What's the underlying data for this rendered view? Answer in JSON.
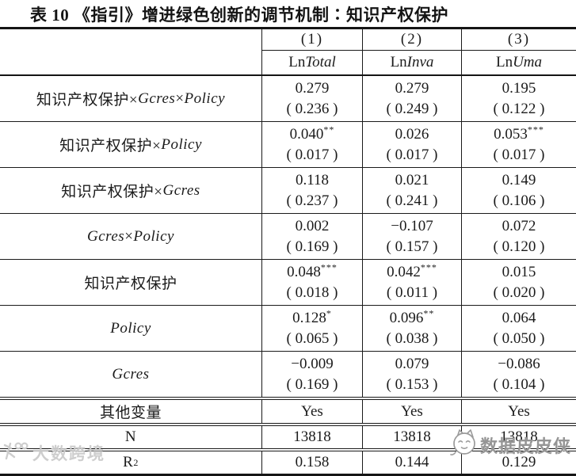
{
  "title": "表 10 《指引》增进绿色创新的调节机制∶知识产权保护",
  "watermarks": {
    "left_text": "大数跨境",
    "right_text": "数据皮皮侠",
    "left_color": "#cccccc",
    "right_color": "#959595"
  },
  "table": {
    "column_numbers": [
      "(1)",
      "(2)",
      "(3)"
    ],
    "column_vars": [
      {
        "segments": [
          {
            "t": "Ln"
          },
          {
            "t": "Total",
            "i": true
          }
        ]
      },
      {
        "segments": [
          {
            "t": "Ln"
          },
          {
            "t": "Inva",
            "i": true
          }
        ]
      },
      {
        "segments": [
          {
            "t": "Ln"
          },
          {
            "t": "Uma",
            "i": true
          }
        ]
      }
    ],
    "coef_rows": [
      {
        "label": [
          {
            "t": "知识产权保护×"
          },
          {
            "t": "Gcres",
            "i": true
          },
          {
            "t": "×"
          },
          {
            "t": "Policy",
            "i": true
          }
        ],
        "cells": [
          {
            "coef": "0.279",
            "stars": "",
            "se": "( 0.236 )"
          },
          {
            "coef": "0.279",
            "stars": "",
            "se": "( 0.249 )"
          },
          {
            "coef": "0.195",
            "stars": "",
            "se": "( 0.122 )"
          }
        ]
      },
      {
        "label": [
          {
            "t": "知识产权保护×"
          },
          {
            "t": "Policy",
            "i": true
          }
        ],
        "cells": [
          {
            "coef": "0.040",
            "stars": "**",
            "se": "( 0.017 )"
          },
          {
            "coef": "0.026",
            "stars": "",
            "se": "( 0.017 )"
          },
          {
            "coef": "0.053",
            "stars": "***",
            "se": "( 0.017 )"
          }
        ]
      },
      {
        "label": [
          {
            "t": "知识产权保护×"
          },
          {
            "t": "Gcres",
            "i": true
          }
        ],
        "cells": [
          {
            "coef": "0.118",
            "stars": "",
            "se": "( 0.237 )"
          },
          {
            "coef": "0.021",
            "stars": "",
            "se": "( 0.241 )"
          },
          {
            "coef": "0.149",
            "stars": "",
            "se": "( 0.106 )"
          }
        ]
      },
      {
        "label": [
          {
            "t": "Gcres",
            "i": true
          },
          {
            "t": "×"
          },
          {
            "t": "Policy",
            "i": true
          }
        ],
        "cells": [
          {
            "coef": "0.002",
            "stars": "",
            "se": "( 0.169 )"
          },
          {
            "coef": "−0.107",
            "stars": "",
            "se": "( 0.157 )"
          },
          {
            "coef": "0.072",
            "stars": "",
            "se": "( 0.120 )"
          }
        ]
      },
      {
        "label": [
          {
            "t": "知识产权保护"
          }
        ],
        "cells": [
          {
            "coef": "0.048",
            "stars": "***",
            "se": "( 0.018 )"
          },
          {
            "coef": "0.042",
            "stars": "***",
            "se": "( 0.011 )"
          },
          {
            "coef": "0.015",
            "stars": "",
            "se": "( 0.020 )"
          }
        ]
      },
      {
        "label": [
          {
            "t": "Policy",
            "i": true
          }
        ],
        "cells": [
          {
            "coef": "0.128",
            "stars": "*",
            "se": "( 0.065 )"
          },
          {
            "coef": "0.096",
            "stars": "**",
            "se": "( 0.038 )"
          },
          {
            "coef": "0.064",
            "stars": "",
            "se": "( 0.050 )"
          }
        ]
      },
      {
        "label": [
          {
            "t": "Gcres",
            "i": true
          }
        ],
        "cells": [
          {
            "coef": "−0.009",
            "stars": "",
            "se": "( 0.169 )"
          },
          {
            "coef": "0.079",
            "stars": "",
            "se": "( 0.153 )"
          },
          {
            "coef": "−0.086",
            "stars": "",
            "se": "( 0.104 )"
          }
        ]
      }
    ],
    "summary_rows": [
      {
        "key": "other-vars",
        "label": [
          {
            "t": "其他变量"
          }
        ],
        "values": [
          "Yes",
          "Yes",
          "Yes"
        ]
      },
      {
        "key": "n-obs",
        "label": [
          {
            "t": "N"
          }
        ],
        "values": [
          "13818",
          "13818",
          "13818"
        ]
      },
      {
        "key": "r-squared",
        "label": [
          {
            "t": "R"
          },
          {
            "t": "2",
            "sup": true
          }
        ],
        "values": [
          "0.158",
          "0.144",
          "0.129"
        ]
      }
    ]
  }
}
